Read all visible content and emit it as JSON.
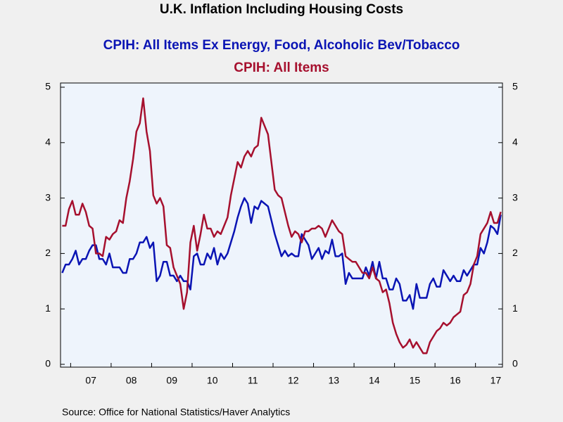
{
  "chart_data": {
    "type": "line",
    "title": "U.K. Inflation Including Housing Costs",
    "source": "Source:  Office for National Statistics/Haver Analytics",
    "categories": [
      null,
      null,
      null,
      null,
      null,
      null,
      null,
      null,
      null,
      "07",
      null,
      null,
      null,
      null,
      null,
      null,
      null,
      null,
      null,
      null,
      null,
      "08",
      null,
      null,
      null,
      null,
      null,
      null,
      null,
      null,
      null,
      null,
      null,
      "09",
      null,
      null,
      null,
      null,
      null,
      null,
      null,
      null,
      null,
      null,
      null,
      "10",
      null,
      null,
      null,
      null,
      null,
      null,
      null,
      null,
      null,
      null,
      null,
      "11",
      null,
      null,
      null,
      null,
      null,
      null,
      null,
      null,
      null,
      null,
      null,
      "12",
      null,
      null,
      null,
      null,
      null,
      null,
      null,
      null,
      null,
      null,
      null,
      "13",
      null,
      null,
      null,
      null,
      null,
      null,
      null,
      null,
      null,
      null,
      null,
      "14",
      null,
      null,
      null,
      null,
      null,
      null,
      null,
      null,
      null,
      null,
      null,
      "15",
      null,
      null,
      null,
      null,
      null,
      null,
      null,
      null,
      null,
      null,
      null,
      "16",
      null,
      null,
      null,
      null,
      null,
      null,
      null,
      null,
      null,
      null,
      null,
      "17",
      null
    ],
    "series": [
      {
        "name": "CPIH: All Items Ex Energy, Food, Alcoholic Bev/Tobacco",
        "color": "#0a14b4",
        "values": [
          1.65,
          1.8,
          1.8,
          1.9,
          2.05,
          1.8,
          1.9,
          1.9,
          2.05,
          2.15,
          2.15,
          1.9,
          1.9,
          1.8,
          2.0,
          1.75,
          1.75,
          1.75,
          1.65,
          1.65,
          1.9,
          1.9,
          2.0,
          2.2,
          2.2,
          2.3,
          2.1,
          2.2,
          1.5,
          1.6,
          1.85,
          1.85,
          1.6,
          1.6,
          1.5,
          1.6,
          1.5,
          1.5,
          1.35,
          1.95,
          2.0,
          1.8,
          1.8,
          2.0,
          1.9,
          2.1,
          1.8,
          2.0,
          1.9,
          2.0,
          2.2,
          2.4,
          2.65,
          2.85,
          3.0,
          2.9,
          2.55,
          2.85,
          2.8,
          2.95,
          2.9,
          2.85,
          2.6,
          2.35,
          2.15,
          1.95,
          2.05,
          1.95,
          2.0,
          1.95,
          1.95,
          2.35,
          2.25,
          2.15,
          1.9,
          2.0,
          2.1,
          1.9,
          2.05,
          2.0,
          2.25,
          1.95,
          1.95,
          2.0,
          1.45,
          1.65,
          1.55,
          1.55,
          1.55,
          1.55,
          1.75,
          1.6,
          1.85,
          1.55,
          1.85,
          1.55,
          1.55,
          1.35,
          1.35,
          1.55,
          1.45,
          1.15,
          1.15,
          1.25,
          1.0,
          1.45,
          1.2,
          1.2,
          1.2,
          1.45,
          1.55,
          1.4,
          1.4,
          1.7,
          1.6,
          1.5,
          1.6,
          1.5,
          1.5,
          1.7,
          1.6,
          1.7,
          1.8,
          1.8,
          2.1,
          2.0,
          2.2,
          2.5,
          2.45,
          2.35,
          2.7
        ]
      },
      {
        "name": "CPIH: All Items",
        "color": "#a6102e",
        "values": [
          2.5,
          2.5,
          2.8,
          2.95,
          2.7,
          2.7,
          2.9,
          2.75,
          2.5,
          2.45,
          2.0,
          2.0,
          1.95,
          2.3,
          2.25,
          2.35,
          2.4,
          2.6,
          2.55,
          3.0,
          3.3,
          3.7,
          4.2,
          4.35,
          4.8,
          4.2,
          3.85,
          3.05,
          2.9,
          3.0,
          2.85,
          2.15,
          2.1,
          1.75,
          1.6,
          1.45,
          1.0,
          1.3,
          2.2,
          2.5,
          2.05,
          2.35,
          2.7,
          2.45,
          2.45,
          2.3,
          2.4,
          2.35,
          2.5,
          2.65,
          3.05,
          3.35,
          3.65,
          3.55,
          3.75,
          3.85,
          3.75,
          3.9,
          3.95,
          4.45,
          4.3,
          4.15,
          3.65,
          3.15,
          3.05,
          3.0,
          2.75,
          2.5,
          2.3,
          2.4,
          2.35,
          2.2,
          2.4,
          2.4,
          2.45,
          2.45,
          2.5,
          2.45,
          2.3,
          2.45,
          2.6,
          2.5,
          2.4,
          2.35,
          1.95,
          1.9,
          1.85,
          1.85,
          1.75,
          1.65,
          1.65,
          1.55,
          1.75,
          1.55,
          1.5,
          1.3,
          1.35,
          1.1,
          0.75,
          0.55,
          0.4,
          0.3,
          0.35,
          0.45,
          0.3,
          0.4,
          0.3,
          0.2,
          0.2,
          0.4,
          0.5,
          0.6,
          0.65,
          0.75,
          0.7,
          0.75,
          0.85,
          0.9,
          0.95,
          1.25,
          1.3,
          1.45,
          1.8,
          1.95,
          2.35,
          2.45,
          2.55,
          2.75,
          2.55,
          2.55,
          2.75
        ]
      }
    ],
    "ylim": [
      0,
      5
    ],
    "yticks": [
      0,
      1,
      2,
      3,
      4,
      5
    ],
    "y2lim": [
      0,
      5
    ],
    "y2ticks": [
      0,
      1,
      2,
      3,
      4,
      5
    ]
  }
}
